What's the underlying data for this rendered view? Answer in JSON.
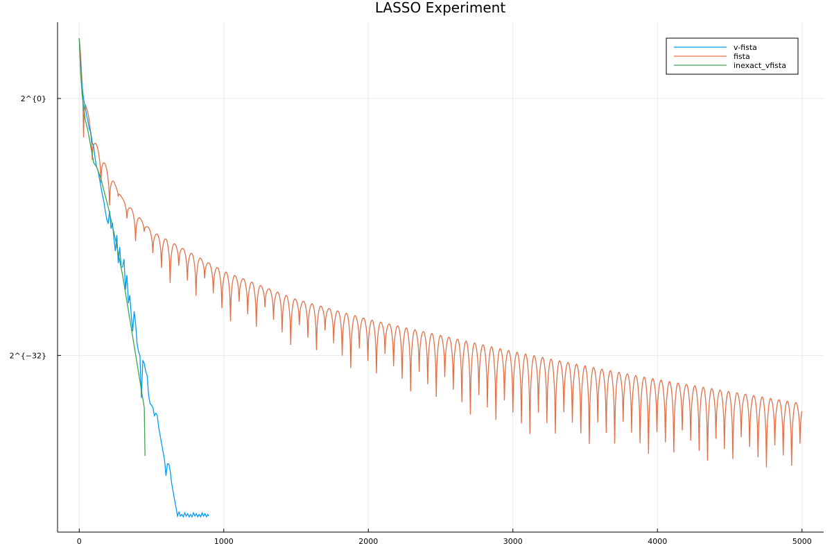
{
  "chart_data": {
    "type": "line",
    "title": "LASSO Experiment",
    "xlabel": "",
    "ylabel": "",
    "xlim": [
      -150,
      5150
    ],
    "ylim_log2": [
      -54,
      9.5
    ],
    "y_scale": "log2",
    "x_ticks": [
      0,
      1000,
      2000,
      3000,
      4000,
      5000
    ],
    "x_tick_labels": [
      "0",
      "1000",
      "2000",
      "3000",
      "4000",
      "5000"
    ],
    "y_ticks_log2": [
      0,
      -32
    ],
    "y_tick_labels": [
      "2^{0}",
      "2^{−32}"
    ],
    "grid": true,
    "legend_position": "top-right",
    "series": [
      {
        "name": "v-fista",
        "color": "#009AFA",
        "points_log2": [
          [
            0,
            7.5
          ],
          [
            10,
            3.5
          ],
          [
            20,
            1.5
          ],
          [
            30,
            0
          ],
          [
            40,
            -1
          ],
          [
            50,
            -2
          ],
          [
            60,
            -2.8
          ],
          [
            70,
            -3.8
          ],
          [
            80,
            -4.2
          ],
          [
            90,
            -5.5
          ],
          [
            100,
            -6
          ],
          [
            110,
            -7.5
          ],
          [
            120,
            -8.5
          ],
          [
            130,
            -9
          ],
          [
            140,
            -10
          ],
          [
            150,
            -11
          ],
          [
            160,
            -12
          ],
          [
            170,
            -12.8
          ],
          [
            180,
            -14
          ],
          [
            190,
            -15
          ],
          [
            200,
            -15.6
          ],
          [
            210,
            -14
          ],
          [
            220,
            -16.2
          ],
          [
            230,
            -15.5
          ],
          [
            240,
            -17.5
          ],
          [
            250,
            -19
          ],
          [
            260,
            -17
          ],
          [
            270,
            -20.5
          ],
          [
            280,
            -18.5
          ],
          [
            290,
            -21
          ],
          [
            300,
            -21
          ],
          [
            310,
            -20
          ],
          [
            320,
            -23.8
          ],
          [
            330,
            -22
          ],
          [
            340,
            -25.5
          ],
          [
            350,
            -24.5
          ],
          [
            360,
            -27
          ],
          [
            370,
            -29
          ],
          [
            380,
            -26.5
          ],
          [
            390,
            -28
          ],
          [
            400,
            -30.5
          ],
          [
            410,
            -31.5
          ],
          [
            420,
            -32
          ],
          [
            430,
            -37.3
          ],
          [
            440,
            -32.6
          ],
          [
            450,
            -33
          ],
          [
            460,
            -34
          ],
          [
            470,
            -34.5
          ],
          [
            480,
            -37
          ],
          [
            490,
            -38
          ],
          [
            500,
            -38.2
          ],
          [
            510,
            -38.5
          ],
          [
            520,
            -39.5
          ],
          [
            530,
            -39.2
          ],
          [
            540,
            -39.5
          ],
          [
            550,
            -41
          ],
          [
            560,
            -42
          ],
          [
            570,
            -43
          ],
          [
            580,
            -44
          ],
          [
            590,
            -45
          ],
          [
            600,
            -47
          ],
          [
            610,
            -45.5
          ],
          [
            620,
            -45.5
          ],
          [
            630,
            -46.5
          ],
          [
            640,
            -48
          ],
          [
            650,
            -49
          ],
          [
            660,
            -50
          ],
          [
            670,
            -51
          ],
          [
            680,
            -52
          ],
          [
            690,
            -51.5
          ],
          [
            700,
            -52
          ],
          [
            710,
            -51.8
          ],
          [
            720,
            -52.1
          ],
          [
            730,
            -51.6
          ],
          [
            740,
            -52
          ],
          [
            750,
            -51.7
          ],
          [
            760,
            -52.1
          ],
          [
            770,
            -51.8
          ],
          [
            780,
            -52.1
          ],
          [
            790,
            -51.6
          ],
          [
            800,
            -52
          ],
          [
            810,
            -51.7
          ],
          [
            820,
            -52.1
          ],
          [
            830,
            -51.8
          ],
          [
            840,
            -52.1
          ],
          [
            850,
            -51.6
          ],
          [
            860,
            -52
          ],
          [
            870,
            -51.7
          ],
          [
            880,
            -52.1
          ],
          [
            890,
            -51.8
          ],
          [
            895,
            -52
          ]
        ]
      },
      {
        "name": "fista",
        "color": "#E26F46",
        "envelope_log2": [
          [
            0,
            7.5
          ],
          [
            50,
            -1
          ],
          [
            100,
            -5
          ],
          [
            200,
            -9
          ],
          [
            300,
            -12.5
          ],
          [
            500,
            -16.5
          ],
          [
            1000,
            -21.5
          ],
          [
            1500,
            -25
          ],
          [
            2000,
            -27.5
          ],
          [
            2500,
            -29.5
          ],
          [
            3000,
            -31.5
          ],
          [
            3500,
            -33.3
          ],
          [
            4000,
            -35
          ],
          [
            4500,
            -36.5
          ],
          [
            5000,
            -38
          ]
        ],
        "trough_depth_log2": [
          [
            0,
            -6
          ],
          [
            500,
            -20
          ],
          [
            1000,
            -26
          ],
          [
            2000,
            -33
          ],
          [
            3000,
            -40
          ],
          [
            4000,
            -43
          ],
          [
            5000,
            -45
          ]
        ],
        "oscillation_period_start": 60,
        "oscillation_period_end": 58,
        "x_end": 5000
      },
      {
        "name": "inexact_vfista",
        "color": "#3EA44E",
        "points_log2": [
          [
            0,
            7.5
          ],
          [
            10,
            3
          ],
          [
            20,
            0.5
          ],
          [
            30,
            -1
          ],
          [
            40,
            -2.5
          ],
          [
            60,
            -4
          ],
          [
            80,
            -6
          ],
          [
            100,
            -8
          ],
          [
            120,
            -8.5
          ],
          [
            150,
            -10
          ],
          [
            200,
            -13.5
          ],
          [
            250,
            -17.5
          ],
          [
            300,
            -22
          ],
          [
            350,
            -27.5
          ],
          [
            400,
            -33
          ],
          [
            450,
            -38.5
          ],
          [
            455,
            -44.5
          ]
        ]
      }
    ]
  }
}
